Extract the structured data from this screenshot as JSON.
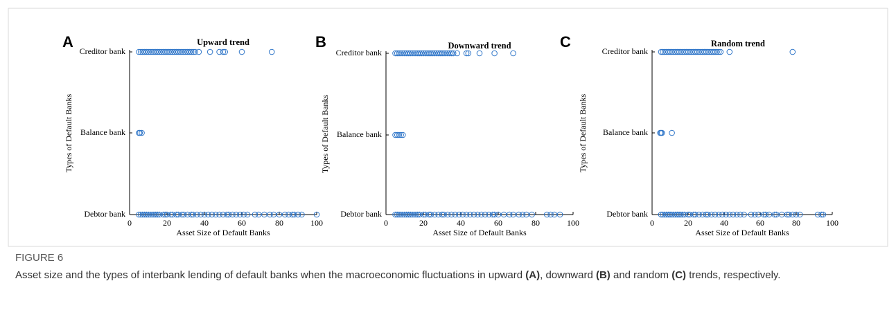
{
  "figure_label": "FIGURE 6",
  "caption": [
    "Asset size and the types of interbank lending of default banks when the macroeconomic fluctuations in upward ",
    "(A)",
    ", downward ",
    "(B)",
    " and random ",
    "(C)",
    " trends, respectively."
  ],
  "chart_data": [
    {
      "type": "scatter",
      "panel": "A",
      "title": "Upward trend",
      "xlabel": "Asset Size of Default Banks",
      "ylabel": "Types of Default Banks",
      "color": "#2e75c8",
      "xlim": [
        0,
        100
      ],
      "xticks": [
        0,
        20,
        40,
        60,
        80,
        100
      ],
      "ycategories": [
        "Debtor bank",
        "Balance bank",
        "Creditor bank"
      ],
      "x_by_category": [
        [
          5,
          6,
          7,
          8,
          9,
          10,
          11,
          12,
          13,
          14,
          15,
          16,
          18,
          19,
          20,
          22,
          23,
          25,
          26,
          28,
          29,
          31,
          33,
          34,
          36,
          38,
          40,
          42,
          44,
          46,
          48,
          50,
          52,
          53,
          55,
          57,
          59,
          61,
          63,
          67,
          69,
          72,
          75,
          77,
          80,
          83,
          85,
          87,
          88,
          90,
          92,
          100
        ],
        [
          5,
          5.5,
          6.5
        ],
        [
          5,
          6,
          7,
          8,
          9,
          10,
          11,
          12,
          13,
          14,
          15,
          16,
          17,
          18,
          19,
          20,
          21,
          22,
          23,
          24,
          25,
          26,
          27,
          28,
          29,
          30,
          31,
          32,
          33,
          34,
          35,
          37,
          43,
          48,
          50,
          51,
          60,
          76
        ]
      ]
    },
    {
      "type": "scatter",
      "panel": "B",
      "title": "Downward trend",
      "xlabel": "Asset Size of Default Banks",
      "ylabel": "Types of Default Banks",
      "color": "#2e75c8",
      "xlim": [
        0,
        100
      ],
      "xticks": [
        0,
        20,
        40,
        60,
        80,
        100
      ],
      "ycategories": [
        "Debtor bank",
        "Balance bank",
        "Creditor bank"
      ],
      "x_by_category": [
        [
          5,
          6,
          7,
          8,
          9,
          10,
          11,
          12,
          13,
          14,
          15,
          16,
          17,
          18,
          20,
          21,
          23,
          24,
          26,
          28,
          30,
          31,
          33,
          35,
          37,
          39,
          41,
          43,
          45,
          47,
          49,
          51,
          53,
          55,
          57,
          58,
          60,
          63,
          66,
          68,
          71,
          73,
          75,
          78,
          86,
          88,
          90,
          93
        ],
        [
          5,
          6,
          7,
          8,
          9
        ],
        [
          5,
          6,
          7,
          8,
          9,
          10,
          11,
          12,
          13,
          14,
          15,
          16,
          17,
          18,
          19,
          20,
          21,
          22,
          23,
          24,
          25,
          26,
          27,
          28,
          29,
          30,
          31,
          32,
          33,
          34,
          35,
          36,
          38,
          43,
          44,
          50,
          58,
          68
        ]
      ]
    },
    {
      "type": "scatter",
      "panel": "C",
      "title": "Random trend",
      "xlabel": "Asset Size of Default Banks",
      "ylabel": "Types of Default Banks",
      "color": "#2e75c8",
      "xlim": [
        0,
        100
      ],
      "xticks": [
        0,
        20,
        40,
        60,
        80,
        100
      ],
      "ycategories": [
        "Debtor bank",
        "Balance bank",
        "Creditor bank"
      ],
      "x_by_category": [
        [
          5,
          6,
          7,
          8,
          9,
          10,
          11,
          12,
          13,
          14,
          15,
          16,
          17,
          18,
          20,
          21,
          23,
          24,
          26,
          28,
          30,
          31,
          33,
          35,
          37,
          39,
          41,
          43,
          45,
          47,
          49,
          51,
          55,
          57,
          59,
          62,
          63,
          65,
          68,
          69,
          72,
          75,
          76,
          78,
          80,
          82,
          92,
          94,
          95
        ],
        [
          4.5,
          5,
          5.5,
          11
        ],
        [
          5,
          6,
          7,
          8,
          9,
          10,
          11,
          12,
          13,
          14,
          15,
          16,
          17,
          18,
          19,
          20,
          21,
          22,
          23,
          24,
          25,
          26,
          27,
          28,
          29,
          30,
          31,
          32,
          33,
          34,
          35,
          36,
          37,
          38,
          43,
          78
        ]
      ]
    }
  ]
}
